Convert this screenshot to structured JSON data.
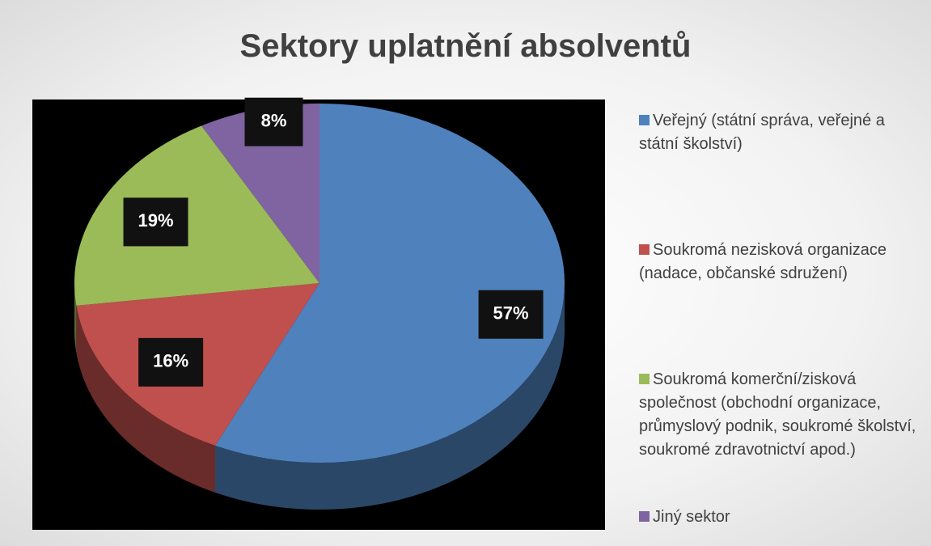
{
  "chart_data": {
    "type": "pie",
    "title": "Sektory uplatnění absolventů",
    "categories": [
      "Veřejný (státní správa, veřejné a státní školství)",
      "Soukromá nezisková organizace (nadace, občanské sdružení)",
      "Soukromá komerční/zisková společnost (obchodní organizace, průmyslový podnik, soukromé školství, soukromé zdravotnictví apod.)",
      "Jiný sektor"
    ],
    "values": [
      57,
      16,
      19,
      8
    ],
    "value_labels": [
      "57%",
      "16%",
      "19%",
      "8%"
    ],
    "colors": [
      "#4f81bd",
      "#c0504d",
      "#9bbb59",
      "#8064a2"
    ],
    "legend": "right"
  }
}
